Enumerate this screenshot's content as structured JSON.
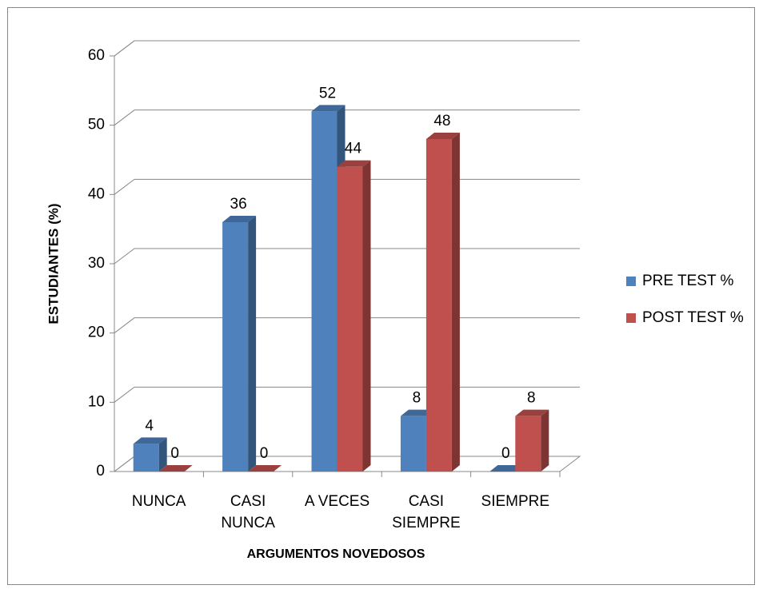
{
  "chart_data": {
    "type": "bar3d",
    "x_label": "ARGUMENTOS NOVEDOSOS",
    "y_label": "ESTUDIANTES (%)",
    "categories": [
      "NUNCA",
      "CASI NUNCA",
      "A VECES",
      "CASI SIEMPRE",
      "SIEMPRE"
    ],
    "series": [
      {
        "name": "PRE TEST %",
        "color": "#4f81bd",
        "values": [
          4,
          36,
          52,
          8,
          0
        ]
      },
      {
        "name": "POST TEST %",
        "color": "#c0504d",
        "values": [
          0,
          0,
          44,
          48,
          8
        ]
      }
    ],
    "ylim": [
      0,
      60
    ],
    "yticks": [
      0,
      10,
      20,
      30,
      40,
      50,
      60
    ],
    "grid": true,
    "legend": "right"
  }
}
